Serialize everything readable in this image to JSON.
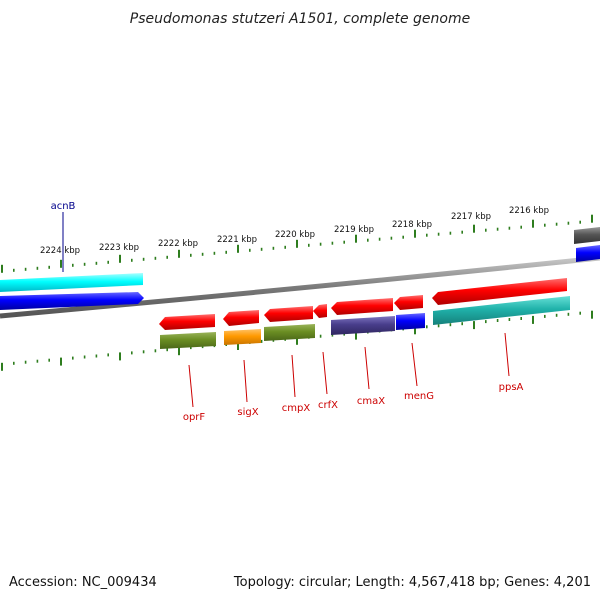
{
  "title": "Pseudomonas stutzeri A1501, complete genome",
  "accession": "Accession: NC_009434",
  "summary": "Topology: circular; Length: 4,567,418 bp; Genes: 4,201",
  "ticks": [
    "2224 kbp",
    "2223 kbp",
    "2222 kbp",
    "2221 kbp",
    "2220 kbp",
    "2219 kbp",
    "2218 kbp",
    "2217 kbp",
    "2216 kbp"
  ],
  "genes": [
    {
      "name": "acnB",
      "color": "#00008b"
    },
    {
      "name": "oprF",
      "color": "#cc0000"
    },
    {
      "name": "sigX",
      "color": "#cc0000"
    },
    {
      "name": "cmpX",
      "color": "#cc0000"
    },
    {
      "name": "crfX",
      "color": "#cc0000"
    },
    {
      "name": "cmaX",
      "color": "#cc0000"
    },
    {
      "name": "menG",
      "color": "#cc0000"
    },
    {
      "name": "ppsA",
      "color": "#cc0000"
    }
  ],
  "colors": {
    "backbone": "#888888",
    "tick": "#2e7d1e",
    "forward_cds": "#ff0000",
    "reverse_cds": "#0000ff",
    "cog_cyan": "#00e5ee",
    "cog_olive": "#6b8e23",
    "cog_orange": "#ff9900",
    "cog_slate": "#483d8b",
    "cog_teal": "#20b2aa",
    "cog_gray": "#555555"
  }
}
